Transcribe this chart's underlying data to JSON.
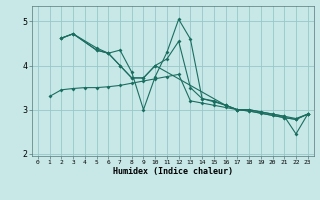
{
  "xlabel": "Humidex (Indice chaleur)",
  "bg_color": "#c8e8e8",
  "grid_color": "#98c8c8",
  "line_color": "#1a6e60",
  "xlim": [
    -0.5,
    23.5
  ],
  "ylim": [
    1.95,
    5.35
  ],
  "yticks": [
    2,
    3,
    4,
    5
  ],
  "xticks": [
    0,
    1,
    2,
    3,
    4,
    5,
    6,
    7,
    8,
    9,
    10,
    11,
    12,
    13,
    14,
    15,
    16,
    17,
    18,
    19,
    20,
    21,
    22,
    23
  ],
  "series": [
    {
      "x": [
        1,
        2,
        3,
        4,
        5,
        6,
        7,
        8,
        9,
        10,
        11,
        12,
        13,
        14,
        15,
        16,
        17,
        18,
        19,
        20,
        21,
        22,
        23
      ],
      "y": [
        3.3,
        3.45,
        3.48,
        3.5,
        3.5,
        3.52,
        3.55,
        3.6,
        3.65,
        3.7,
        3.75,
        3.8,
        3.2,
        3.15,
        3.1,
        3.05,
        3.0,
        3.0,
        2.95,
        2.9,
        2.85,
        2.8,
        2.9
      ]
    },
    {
      "x": [
        2,
        3,
        5,
        6,
        7,
        8,
        9,
        10,
        11,
        12,
        13,
        14,
        15,
        16,
        17,
        18,
        19,
        20,
        21,
        22,
        23
      ],
      "y": [
        4.62,
        4.72,
        4.4,
        4.28,
        4.35,
        3.85,
        3.0,
        3.75,
        4.3,
        5.05,
        4.6,
        3.25,
        3.2,
        3.1,
        3.0,
        3.0,
        2.95,
        2.9,
        2.85,
        2.45,
        2.9
      ]
    },
    {
      "x": [
        2,
        3,
        5,
        6,
        7,
        8,
        9,
        10,
        11,
        12,
        13,
        14,
        15,
        16,
        17,
        18,
        19,
        20,
        21,
        22,
        23
      ],
      "y": [
        4.62,
        4.72,
        4.35,
        4.28,
        4.0,
        3.72,
        3.72,
        4.0,
        4.15,
        4.55,
        3.5,
        3.25,
        3.18,
        3.1,
        3.0,
        2.97,
        2.92,
        2.87,
        2.82,
        2.78,
        2.9
      ]
    },
    {
      "x": [
        2,
        3,
        5,
        6,
        7,
        8,
        9,
        10,
        16,
        17,
        18,
        19,
        20,
        21,
        22,
        23
      ],
      "y": [
        4.62,
        4.72,
        4.35,
        4.28,
        4.0,
        3.72,
        3.72,
        4.0,
        3.1,
        3.0,
        2.97,
        2.92,
        2.87,
        2.82,
        2.78,
        2.9
      ]
    }
  ]
}
